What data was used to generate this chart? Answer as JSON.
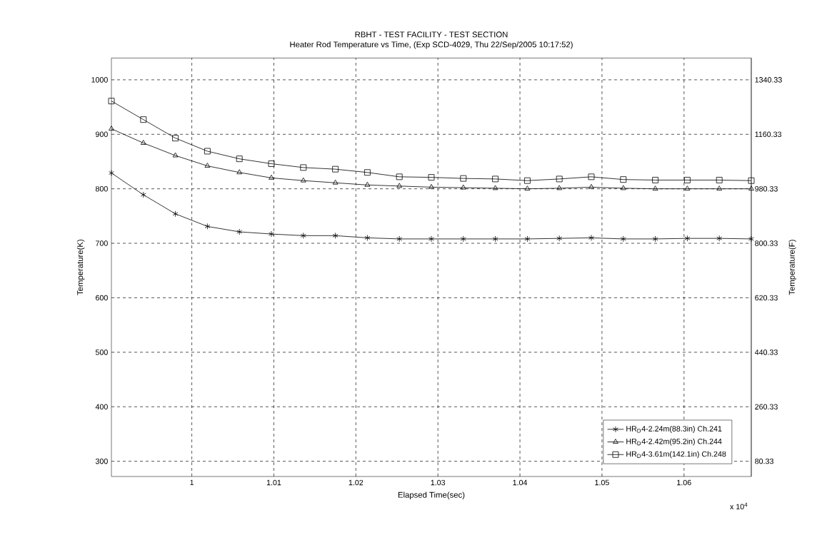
{
  "chart_data": {
    "type": "line",
    "title": "RBHT - TEST FACILITY - TEST SECTION",
    "subtitle": "Heater Rod Temperature vs Time, (Exp SCD-4029, Thu 22/Sep/2005 10:17:52)",
    "xlabel": "Elapsed Time(sec)",
    "ylabel": "Temperature(K)",
    "y2label": "Temperature(F)",
    "annotations": [
      "x 10$^{4}$"
    ],
    "x": [
      0.9902,
      0.9941,
      0.998,
      1.0019,
      1.0058,
      1.0097,
      1.0136,
      1.0175,
      1.0214,
      1.0253,
      1.0292,
      1.0331,
      1.037,
      1.0409,
      1.0448,
      1.0487,
      1.0526,
      1.0565,
      1.0604,
      1.0643,
      1.0682
    ],
    "series": [
      {
        "name": "HR$_{D}$4-2.24m(88.3in)  Ch.241",
        "color": "#000000",
        "marker": "cross",
        "values": [
          829,
          789,
          754,
          731,
          721,
          717,
          714,
          714,
          710,
          708,
          708,
          708,
          708,
          708,
          709,
          710,
          708,
          708,
          709,
          709,
          708
        ]
      },
      {
        "name": "HR$_{D}$4-2.42m(95.2in)  Ch.244",
        "color": "#000000",
        "marker": "triangle",
        "values": [
          910,
          884,
          861,
          842,
          830,
          820,
          815,
          811,
          807,
          805,
          803,
          802,
          801,
          800,
          801,
          803,
          801,
          800,
          800,
          800,
          800
        ]
      },
      {
        "name": "HR$_{D}$4-3.61m(142.1in)  Ch.248",
        "color": "#000000",
        "marker": "square",
        "values": [
          961,
          927,
          893,
          869,
          855,
          846,
          839,
          836,
          830,
          822,
          821,
          819,
          818,
          815,
          818,
          822,
          817,
          816,
          816,
          816,
          815
        ]
      }
    ],
    "xlim": [
      0.9902,
      1.0682
    ],
    "xticks": [
      1,
      1.01,
      1.02,
      1.03,
      1.04,
      1.05,
      1.06
    ],
    "ylim": [
      272,
      1040
    ],
    "yticks": [
      300,
      400,
      500,
      600,
      700,
      800,
      900,
      1000
    ],
    "y2lim": [
      29.93,
      1412.33
    ],
    "y2ticks": [
      80.33,
      260.33,
      440.33,
      620.33,
      800.33,
      980.33,
      1160.33,
      1340.33
    ],
    "grid": true,
    "legend": "bottom right",
    "line_style": "solid"
  }
}
